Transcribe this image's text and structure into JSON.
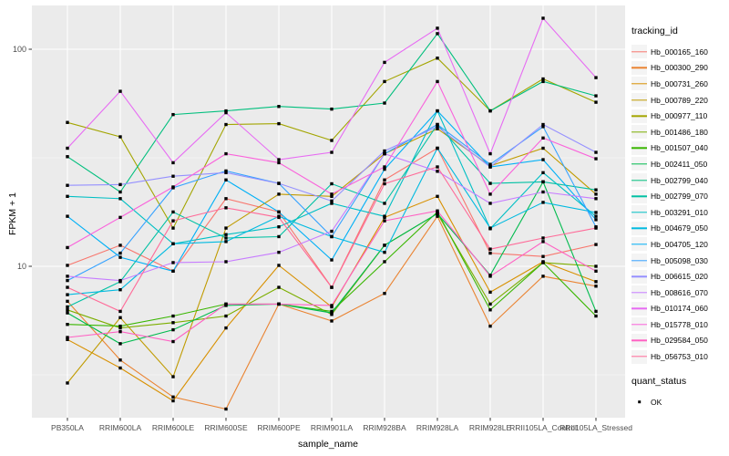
{
  "chart_data": {
    "type": "line",
    "title": "",
    "xlabel": "sample_name",
    "ylabel": "FPKM + 1",
    "y_scale": "log10",
    "y_ticks": [
      10,
      100
    ],
    "ylim": [
      1.8,
      160
    ],
    "grid": true,
    "panel_color": "#ebebeb",
    "legend_position": "right",
    "legend_title": "tracking_id",
    "quant_legend_title": "quant_status",
    "quant_status_label": "OK",
    "categories": [
      "PB350LA",
      "RRIM600LA",
      "RRIM600LE",
      "RRIM600SE",
      "RRIM600PE",
      "RRIM901LA",
      "RRIM928BA",
      "RRIM928LA",
      "RRIM928LE",
      "RRII105LA_Control",
      "RRII105LA_Stressed"
    ],
    "series": [
      {
        "name": "Hb_000165_160",
        "color": "#F8766D",
        "values": [
          10.1,
          12.5,
          9.5,
          20.5,
          17.8,
          8.0,
          25,
          35,
          11.5,
          11.1,
          12.6
        ]
      },
      {
        "name": "Hb_000300_290",
        "color": "#EA8331",
        "values": [
          6.9,
          3.7,
          2.5,
          2.2,
          6.7,
          5.6,
          7.5,
          17,
          5.3,
          9.0,
          8.1
        ]
      },
      {
        "name": "Hb_000731_260",
        "color": "#D89000",
        "values": [
          4.6,
          3.4,
          2.4,
          5.2,
          10.1,
          6.5,
          16.8,
          21,
          7.6,
          10.5,
          8.5
        ]
      },
      {
        "name": "Hb_000789_220",
        "color": "#C09B00",
        "values": [
          2.9,
          5.8,
          3.1,
          15,
          21.5,
          21,
          33,
          43,
          29,
          35,
          21.5
        ]
      },
      {
        "name": "Hb_000977_110",
        "color": "#A3A500",
        "values": [
          46,
          39.5,
          15,
          45,
          45.4,
          38,
          71,
          91,
          52,
          73,
          57
        ]
      },
      {
        "name": "Hb_001486_180",
        "color": "#7CAE00",
        "values": [
          6.3,
          5.2,
          5.5,
          5.9,
          8.0,
          6.0,
          12.5,
          17.5,
          6.7,
          10.4,
          10.0
        ]
      },
      {
        "name": "Hb_001507_040",
        "color": "#39B600",
        "values": [
          5.4,
          5.3,
          5.9,
          6.7,
          6.7,
          6.2,
          10.5,
          17.8,
          6.3,
          10.4,
          5.9
        ]
      },
      {
        "name": "Hb_002411_050",
        "color": "#00BB4E",
        "values": [
          6.1,
          4.4,
          5.1,
          6.6,
          6.7,
          6.1,
          12.5,
          17.5,
          9.1,
          24.5,
          6.2
        ]
      },
      {
        "name": "Hb_002799_040",
        "color": "#00BF7D",
        "values": [
          32,
          22,
          50,
          52,
          54.5,
          53,
          56.5,
          118,
          52,
          71,
          61
        ]
      },
      {
        "name": "Hb_002799_070",
        "color": "#00C1A3",
        "values": [
          6.5,
          8.5,
          17.8,
          13.5,
          13.7,
          24,
          19.5,
          45,
          24.1,
          24.5,
          22.5
        ]
      },
      {
        "name": "Hb_003291_010",
        "color": "#00BFC4",
        "values": [
          21,
          20.5,
          12.7,
          14,
          15.2,
          19.5,
          17,
          52,
          14.9,
          27,
          17
        ]
      },
      {
        "name": "Hb_004679_050",
        "color": "#00BAE0",
        "values": [
          7.4,
          7.8,
          12.7,
          13,
          17,
          13.7,
          11.6,
          35,
          15,
          19.7,
          17.7
        ]
      },
      {
        "name": "Hb_004705_120",
        "color": "#00B0F6",
        "values": [
          17,
          11,
          9.5,
          25,
          17.8,
          10.7,
          28,
          52,
          28.7,
          31,
          16.4
        ]
      },
      {
        "name": "Hb_005098_030",
        "color": "#35A2FF",
        "values": [
          8.6,
          11.5,
          23,
          27.5,
          24.1,
          13.7,
          33,
          45,
          29.5,
          44,
          15.2
        ]
      },
      {
        "name": "Hb_006615_020",
        "color": "#9590FF",
        "values": [
          23.6,
          23.8,
          26,
          27,
          24.1,
          20,
          34,
          44,
          28.7,
          45,
          33.5
        ]
      },
      {
        "name": "Hb_008616_070",
        "color": "#C77CFF",
        "values": [
          9.0,
          8.6,
          10.4,
          10.5,
          11.6,
          14.5,
          33,
          27.4,
          19.5,
          22,
          20.5
        ]
      },
      {
        "name": "Hb_010174_060",
        "color": "#E76BF3",
        "values": [
          35,
          64,
          30,
          51,
          31,
          33.5,
          87,
          125,
          33,
          139,
          74
        ]
      },
      {
        "name": "Hb_015778_010",
        "color": "#FA62DB",
        "values": [
          12.2,
          16.8,
          23.2,
          33,
          30,
          21.5,
          28.7,
          71,
          21.5,
          39,
          31.3
        ]
      },
      {
        "name": "Hb_029584_050",
        "color": "#FF61C3",
        "values": [
          4.7,
          5.0,
          4.5,
          6.7,
          6.7,
          6.6,
          16.2,
          18,
          9.0,
          13,
          9.5
        ]
      },
      {
        "name": "Hb_056753_010",
        "color": "#FF6A98",
        "values": [
          8.0,
          6.2,
          16.2,
          18.6,
          16.8,
          8.0,
          24,
          28.7,
          12.0,
          13.5,
          15.0
        ]
      }
    ]
  }
}
